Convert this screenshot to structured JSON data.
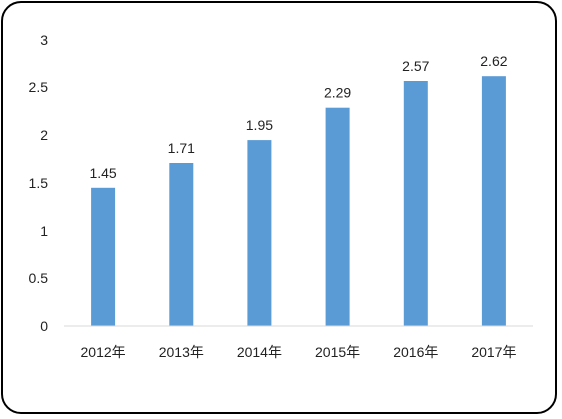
{
  "chart_data": {
    "type": "bar",
    "categories": [
      "2012年",
      "2013年",
      "2014年",
      "2015年",
      "2016年",
      "2017年"
    ],
    "values": [
      1.45,
      1.71,
      1.95,
      2.29,
      2.57,
      2.62
    ],
    "value_labels": [
      "1.45",
      "1.71",
      "1.95",
      "2.29",
      "2.57",
      "2.62"
    ],
    "ylim": [
      0,
      3
    ],
    "y_ticks": [
      "0",
      "0.5",
      "1",
      "1.5",
      "2",
      "2.5",
      "3"
    ],
    "grid": false,
    "legend": "none",
    "bar_color": "#5B9BD5",
    "axis_color": "#D9D9D9",
    "frame_color": "#000000"
  }
}
